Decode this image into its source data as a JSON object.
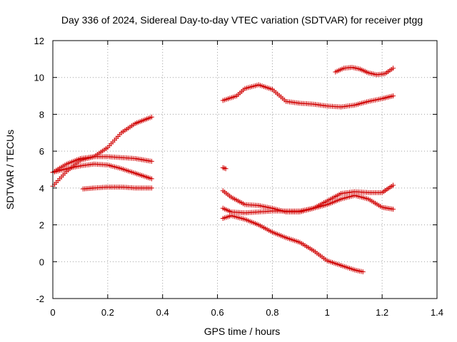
{
  "chart_data": {
    "type": "scatter",
    "title": "Day 336 of 2024, Sidereal Day-to-day VTEC variation (SDTVAR) for receiver ptgg",
    "xlabel": "GPS time / hours",
    "ylabel": "SDTVAR / TECUs",
    "xlim": [
      0,
      1.4
    ],
    "ylim": [
      -2,
      12
    ],
    "x_ticks": [
      0,
      0.2,
      0.4,
      0.6,
      0.8,
      1,
      1.2,
      1.4
    ],
    "x_tick_labels": [
      "0",
      "0.2",
      "0.4",
      "0.6",
      "0.8",
      "1",
      "1.2",
      "1.4"
    ],
    "y_ticks": [
      -2,
      0,
      2,
      4,
      6,
      8,
      10,
      12
    ],
    "y_tick_labels": [
      "-2",
      "0",
      "2",
      "4",
      "6",
      "8",
      "10",
      "12"
    ],
    "grid": true,
    "marker": "+",
    "marker_color": "#d00000",
    "series": [
      {
        "name": "s1",
        "x": [
          0.0,
          0.05,
          0.1,
          0.15,
          0.2,
          0.25,
          0.3,
          0.36
        ],
        "y": [
          4.1,
          4.9,
          5.5,
          5.7,
          6.2,
          7.0,
          7.5,
          7.85
        ]
      },
      {
        "name": "s2",
        "x": [
          0.0,
          0.05,
          0.1,
          0.15,
          0.2,
          0.25,
          0.3,
          0.36
        ],
        "y": [
          4.85,
          5.3,
          5.6,
          5.7,
          5.7,
          5.65,
          5.6,
          5.45
        ]
      },
      {
        "name": "s3",
        "x": [
          0.0,
          0.05,
          0.1,
          0.15,
          0.2,
          0.25,
          0.3,
          0.36
        ],
        "y": [
          4.85,
          5.05,
          5.2,
          5.3,
          5.25,
          5.05,
          4.8,
          4.5
        ]
      },
      {
        "name": "s4",
        "x": [
          0.11,
          0.15,
          0.2,
          0.25,
          0.3,
          0.36
        ],
        "y": [
          3.95,
          4.0,
          4.05,
          4.05,
          4.0,
          4.0
        ]
      },
      {
        "name": "s5",
        "x": [
          0.62,
          0.67,
          0.7,
          0.75,
          0.8,
          0.85,
          0.9,
          0.95,
          1.0,
          1.05,
          1.1,
          1.15,
          1.2,
          1.24
        ],
        "y": [
          8.75,
          9.0,
          9.4,
          9.6,
          9.35,
          8.7,
          8.6,
          8.55,
          8.45,
          8.4,
          8.5,
          8.7,
          8.85,
          9.0
        ]
      },
      {
        "name": "s6",
        "x": [
          1.03,
          1.06,
          1.09,
          1.12,
          1.15,
          1.18,
          1.21,
          1.24
        ],
        "y": [
          10.3,
          10.5,
          10.55,
          10.45,
          10.25,
          10.15,
          10.2,
          10.5
        ]
      },
      {
        "name": "s7",
        "x": [
          0.62,
          0.65,
          0.7,
          0.75,
          0.8,
          0.85,
          0.9,
          0.95,
          1.0,
          1.05,
          1.1,
          1.15,
          1.2,
          1.24
        ],
        "y": [
          3.85,
          3.5,
          3.1,
          3.05,
          2.9,
          2.7,
          2.7,
          2.9,
          3.3,
          3.7,
          3.8,
          3.75,
          3.75,
          4.15
        ]
      },
      {
        "name": "s8",
        "x": [
          0.62,
          0.65,
          0.7,
          0.75,
          0.8,
          0.85,
          0.9,
          0.95,
          1.0,
          1.05,
          1.1,
          1.15,
          1.2,
          1.24
        ],
        "y": [
          2.9,
          2.7,
          2.65,
          2.7,
          2.75,
          2.75,
          2.75,
          2.9,
          3.1,
          3.4,
          3.6,
          3.4,
          2.95,
          2.85
        ]
      },
      {
        "name": "s9",
        "x": [
          0.62,
          0.65,
          0.7,
          0.75,
          0.8,
          0.85,
          0.9,
          0.95,
          1.0,
          1.05,
          1.1,
          1.13
        ],
        "y": [
          2.35,
          2.5,
          2.3,
          2.0,
          1.6,
          1.3,
          1.05,
          0.6,
          0.05,
          -0.2,
          -0.45,
          -0.55
        ]
      },
      {
        "name": "s10",
        "x": [
          0.62,
          0.63
        ],
        "y": [
          5.1,
          5.05
        ]
      }
    ]
  }
}
